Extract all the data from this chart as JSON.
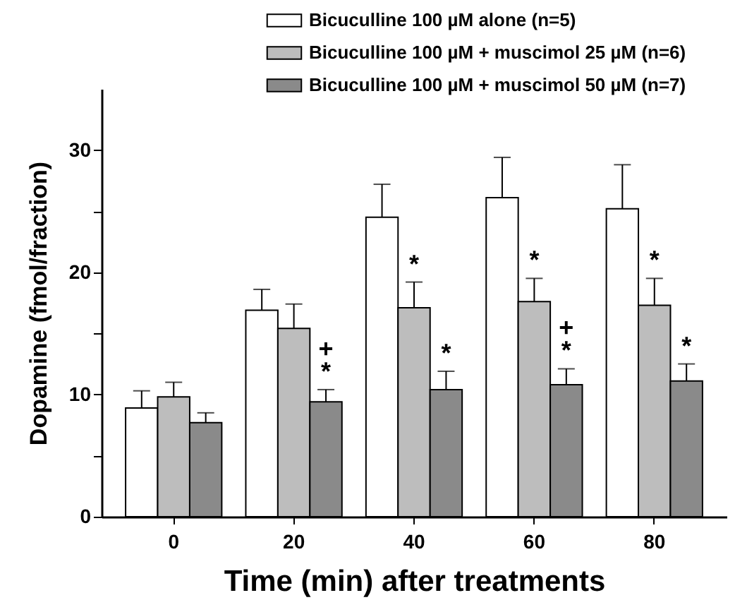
{
  "chart_data": {
    "type": "bar",
    "xlabel": "Time (min) after treatments",
    "ylabel": "Dopamine (fmol/fraction)",
    "categories": [
      "0",
      "20",
      "40",
      "60",
      "80"
    ],
    "series": [
      {
        "name": "Bicuculline 100 µM alone (n=5)",
        "color": "#ffffff",
        "values": [
          8.9,
          16.9,
          24.5,
          26.1,
          25.2
        ],
        "errors": [
          [
            8.9,
            10.3
          ],
          [
            16.9,
            18.6
          ],
          [
            24.5,
            27.2
          ],
          [
            26.1,
            29.4
          ],
          [
            25.2,
            28.8
          ]
        ]
      },
      {
        "name": "Bicuculline 100 µM + muscimol 25 µM (n=6)",
        "color": "#bdbdbd",
        "values": [
          9.8,
          15.4,
          17.1,
          17.6,
          17.3
        ],
        "errors": [
          [
            9.8,
            11.0
          ],
          [
            15.4,
            17.4
          ],
          [
            17.1,
            19.2
          ],
          [
            17.6,
            19.5
          ],
          [
            17.3,
            19.5
          ]
        ]
      },
      {
        "name": "Bicuculline 100 µM + muscimol 50 µM (n=7)",
        "color": "#8a8a8a",
        "values": [
          7.7,
          9.4,
          10.4,
          10.8,
          11.1
        ],
        "errors": [
          [
            7.7,
            8.5
          ],
          [
            9.4,
            10.4
          ],
          [
            10.4,
            11.9
          ],
          [
            10.8,
            12.1
          ],
          [
            11.1,
            12.5
          ]
        ]
      }
    ],
    "ylim": [
      0,
      35
    ],
    "yticks": [
      0,
      {
        "value": 5,
        "label": null
      },
      10,
      {
        "value": 15,
        "label": null
      },
      20,
      {
        "value": 25,
        "label": null
      },
      30
    ],
    "grid": false,
    "legend": "top right",
    "annotations": [
      "*",
      "+",
      "*",
      "*",
      "*",
      "*",
      "+",
      "*",
      "*"
    ]
  }
}
